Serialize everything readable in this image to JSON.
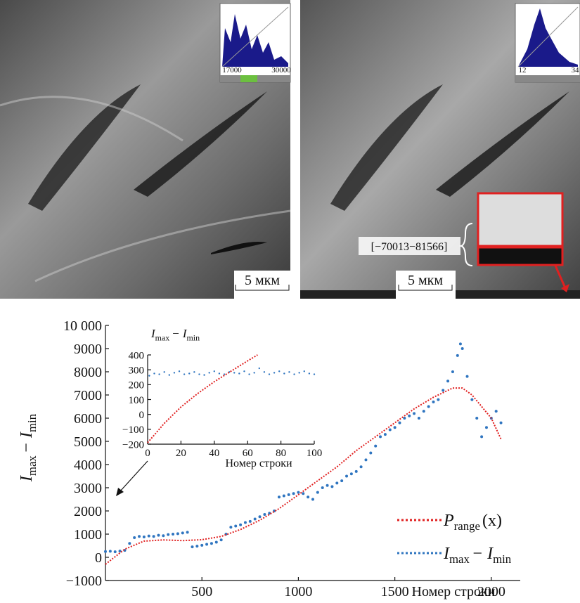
{
  "panels": [
    {
      "hist_ticks": [
        "17000",
        "30000"
      ],
      "scale": "5 мкм"
    },
    {
      "hist_ticks": [
        "12",
        "34"
      ],
      "scale": "5 мкм",
      "annotation": "[−70013−81566]"
    }
  ],
  "chart_data": [
    {
      "type": "scatter",
      "xlabel": "Номер строки",
      "ylabel": [
        "I",
        "max",
        "− I",
        "min"
      ],
      "xlim": [
        0,
        2150
      ],
      "ylim": [
        -1000,
        10000
      ],
      "xticks": [
        500,
        1000,
        1500,
        2000
      ],
      "yticks": [
        {
          "value": -1000,
          "label": "−1000"
        },
        0,
        1000,
        2000,
        3000,
        4000,
        5000,
        6000,
        7000,
        8000,
        9000,
        {
          "value": 10000,
          "label": "10 000"
        }
      ],
      "series": [
        {
          "name": [
            "I",
            "max",
            "− I",
            "min"
          ],
          "color": "#2f75c0",
          "mode": "dots",
          "x": [
            0,
            25,
            50,
            75,
            100,
            125,
            150,
            175,
            200,
            225,
            250,
            275,
            300,
            325,
            350,
            375,
            400,
            425,
            450,
            475,
            500,
            525,
            550,
            575,
            600,
            625,
            650,
            675,
            700,
            725,
            750,
            775,
            800,
            825,
            850,
            875,
            900,
            925,
            950,
            975,
            1000,
            1025,
            1050,
            1075,
            1100,
            1125,
            1150,
            1175,
            1200,
            1225,
            1250,
            1275,
            1300,
            1325,
            1350,
            1375,
            1400,
            1425,
            1450,
            1475,
            1500,
            1525,
            1550,
            1575,
            1600,
            1625,
            1650,
            1675,
            1700,
            1725,
            1750,
            1775,
            1800,
            1825,
            1840,
            1850,
            1875,
            1900,
            1925,
            1950,
            1975,
            2000,
            2025,
            2050
          ],
          "values": [
            250,
            260,
            240,
            270,
            300,
            600,
            850,
            900,
            880,
            920,
            900,
            950,
            930,
            980,
            1000,
            1020,
            1050,
            1080,
            450,
            480,
            520,
            560,
            600,
            650,
            750,
            1000,
            1300,
            1350,
            1400,
            1500,
            1550,
            1650,
            1750,
            1850,
            1900,
            2000,
            2600,
            2650,
            2700,
            2750,
            2800,
            2750,
            2600,
            2500,
            2800,
            3000,
            3100,
            3050,
            3200,
            3300,
            3500,
            3600,
            3700,
            3900,
            4200,
            4500,
            4800,
            5200,
            5300,
            5500,
            5600,
            5800,
            6000,
            6100,
            6200,
            6000,
            6300,
            6500,
            6700,
            6800,
            7200,
            7600,
            8000,
            8700,
            9200,
            9000,
            7800,
            6800,
            6000,
            5200,
            5600,
            6000,
            6300,
            5800
          ]
        },
        {
          "name": [
            "P",
            "range",
            "(x)"
          ],
          "color": "#e02020",
          "mode": "line",
          "x": [
            0,
            100,
            200,
            300,
            400,
            500,
            600,
            700,
            800,
            900,
            1000,
            1100,
            1200,
            1300,
            1400,
            1500,
            1600,
            1700,
            1800,
            1850,
            1900,
            2000,
            2050
          ],
          "values": [
            -300,
            350,
            700,
            750,
            720,
            760,
            900,
            1200,
            1600,
            2100,
            2700,
            3300,
            3900,
            4600,
            5200,
            5800,
            6400,
            6900,
            7300,
            7300,
            7000,
            6000,
            5100
          ]
        }
      ]
    },
    {
      "type": "scatter",
      "title": [
        "I",
        "max",
        "− I",
        "min"
      ],
      "xlabel": "Номер строки",
      "xlim": [
        0,
        100
      ],
      "ylim": [
        -200,
        400
      ],
      "xticks": [
        0,
        20,
        40,
        60,
        80,
        100
      ],
      "yticks": [
        {
          "value": -200,
          "label": "−200"
        },
        {
          "value": -100,
          "label": "−100"
        },
        0,
        100,
        200,
        300,
        400
      ],
      "series": [
        {
          "color": "#2f75c0",
          "mode": "dots",
          "x": [
            1,
            4,
            7,
            10,
            13,
            16,
            19,
            22,
            25,
            28,
            31,
            34,
            37,
            40,
            43,
            46,
            49,
            52,
            55,
            58,
            61,
            64,
            67,
            70,
            73,
            76,
            79,
            82,
            85,
            88,
            91,
            94,
            97,
            100
          ],
          "values": [
            260,
            275,
            270,
            285,
            265,
            280,
            290,
            270,
            275,
            285,
            270,
            265,
            280,
            290,
            275,
            270,
            285,
            280,
            275,
            290,
            270,
            280,
            310,
            285,
            270,
            280,
            290,
            275,
            285,
            270,
            280,
            290,
            275,
            270
          ]
        },
        {
          "color": "#e02020",
          "mode": "line",
          "x": [
            0,
            10,
            20,
            30,
            40,
            50,
            60,
            66
          ],
          "values": [
            -190,
            -60,
            50,
            140,
            220,
            290,
            360,
            400
          ]
        }
      ]
    }
  ]
}
